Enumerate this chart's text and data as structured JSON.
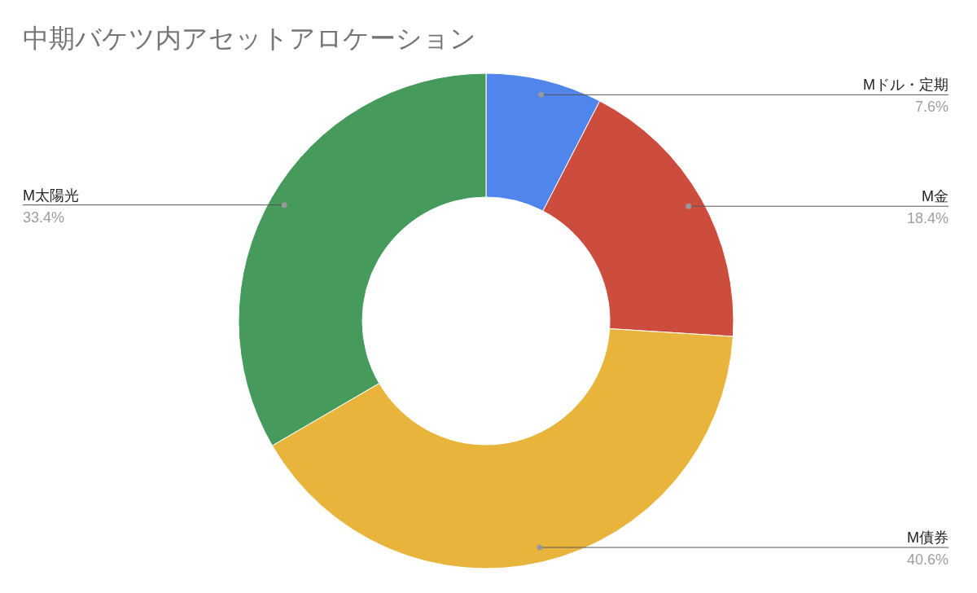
{
  "chart_data": {
    "type": "donut",
    "title": "中期バケツ内アセットアロケーション",
    "categories": [
      "Mドル・定期",
      "M金",
      "M債券",
      "M太陽光"
    ],
    "values": [
      7.6,
      18.4,
      40.6,
      33.4
    ],
    "colors": [
      "#5086ec",
      "#cc4d3e",
      "#e8b43c",
      "#459a5c"
    ],
    "value_labels": [
      "7.6%",
      "18.4%",
      "40.6%",
      "33.4%"
    ],
    "legend": false
  }
}
